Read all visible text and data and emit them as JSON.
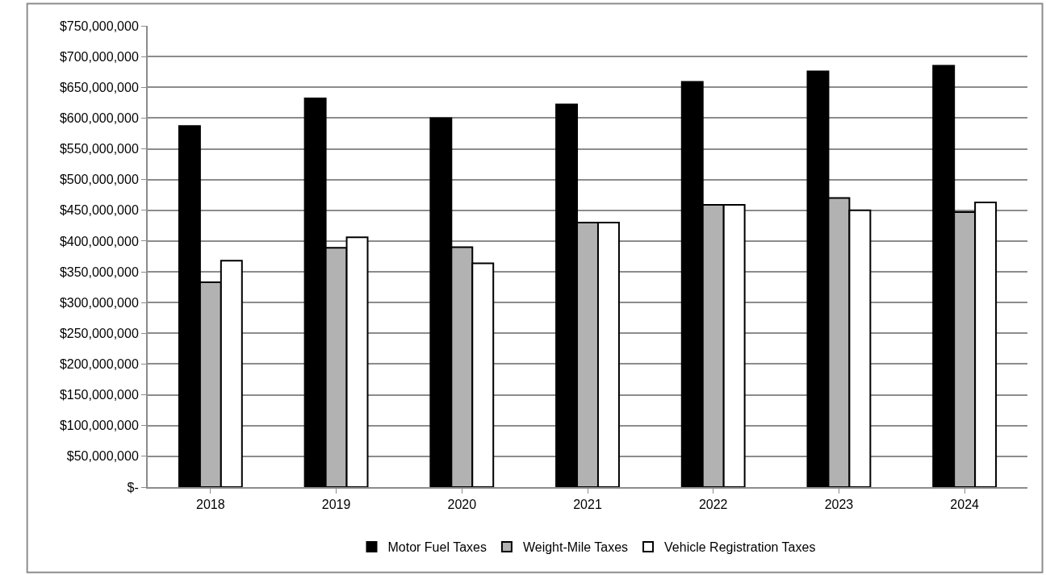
{
  "chart_data": {
    "type": "bar",
    "categories": [
      "2018",
      "2019",
      "2020",
      "2021",
      "2022",
      "2023",
      "2024"
    ],
    "series": [
      {
        "name": "Motor Fuel Taxes",
        "color": "#000000",
        "values": [
          587000000,
          632000000,
          600000000,
          622000000,
          659000000,
          676000000,
          685000000
        ]
      },
      {
        "name": "Weight-Mile Taxes",
        "color": "#b2b2b2",
        "values": [
          333000000,
          389000000,
          390000000,
          430000000,
          459000000,
          470000000,
          447000000
        ]
      },
      {
        "name": "Vehicle Registration Taxes",
        "color": "#ffffff",
        "values": [
          368000000,
          406000000,
          364000000,
          430000000,
          459000000,
          450000000,
          463000000
        ]
      }
    ],
    "ylim": [
      0,
      750000000
    ],
    "yticks": [
      {
        "value": 0,
        "label": "$-"
      },
      {
        "value": 50000000,
        "label": "$50,000,000"
      },
      {
        "value": 100000000,
        "label": "$100,000,000"
      },
      {
        "value": 150000000,
        "label": "$150,000,000"
      },
      {
        "value": 200000000,
        "label": "$200,000,000"
      },
      {
        "value": 250000000,
        "label": "$250,000,000"
      },
      {
        "value": 300000000,
        "label": "$300,000,000"
      },
      {
        "value": 350000000,
        "label": "$350,000,000"
      },
      {
        "value": 400000000,
        "label": "$400,000,000"
      },
      {
        "value": 450000000,
        "label": "$450,000,000"
      },
      {
        "value": 500000000,
        "label": "$500,000,000"
      },
      {
        "value": 550000000,
        "label": "$550,000,000"
      },
      {
        "value": 600000000,
        "label": "$600,000,000"
      },
      {
        "value": 650000000,
        "label": "$650,000,000"
      },
      {
        "value": 700000000,
        "label": "$700,000,000"
      },
      {
        "value": 750000000,
        "label": "$750,000,000"
      }
    ],
    "grid": "y",
    "legend": "bottom"
  }
}
